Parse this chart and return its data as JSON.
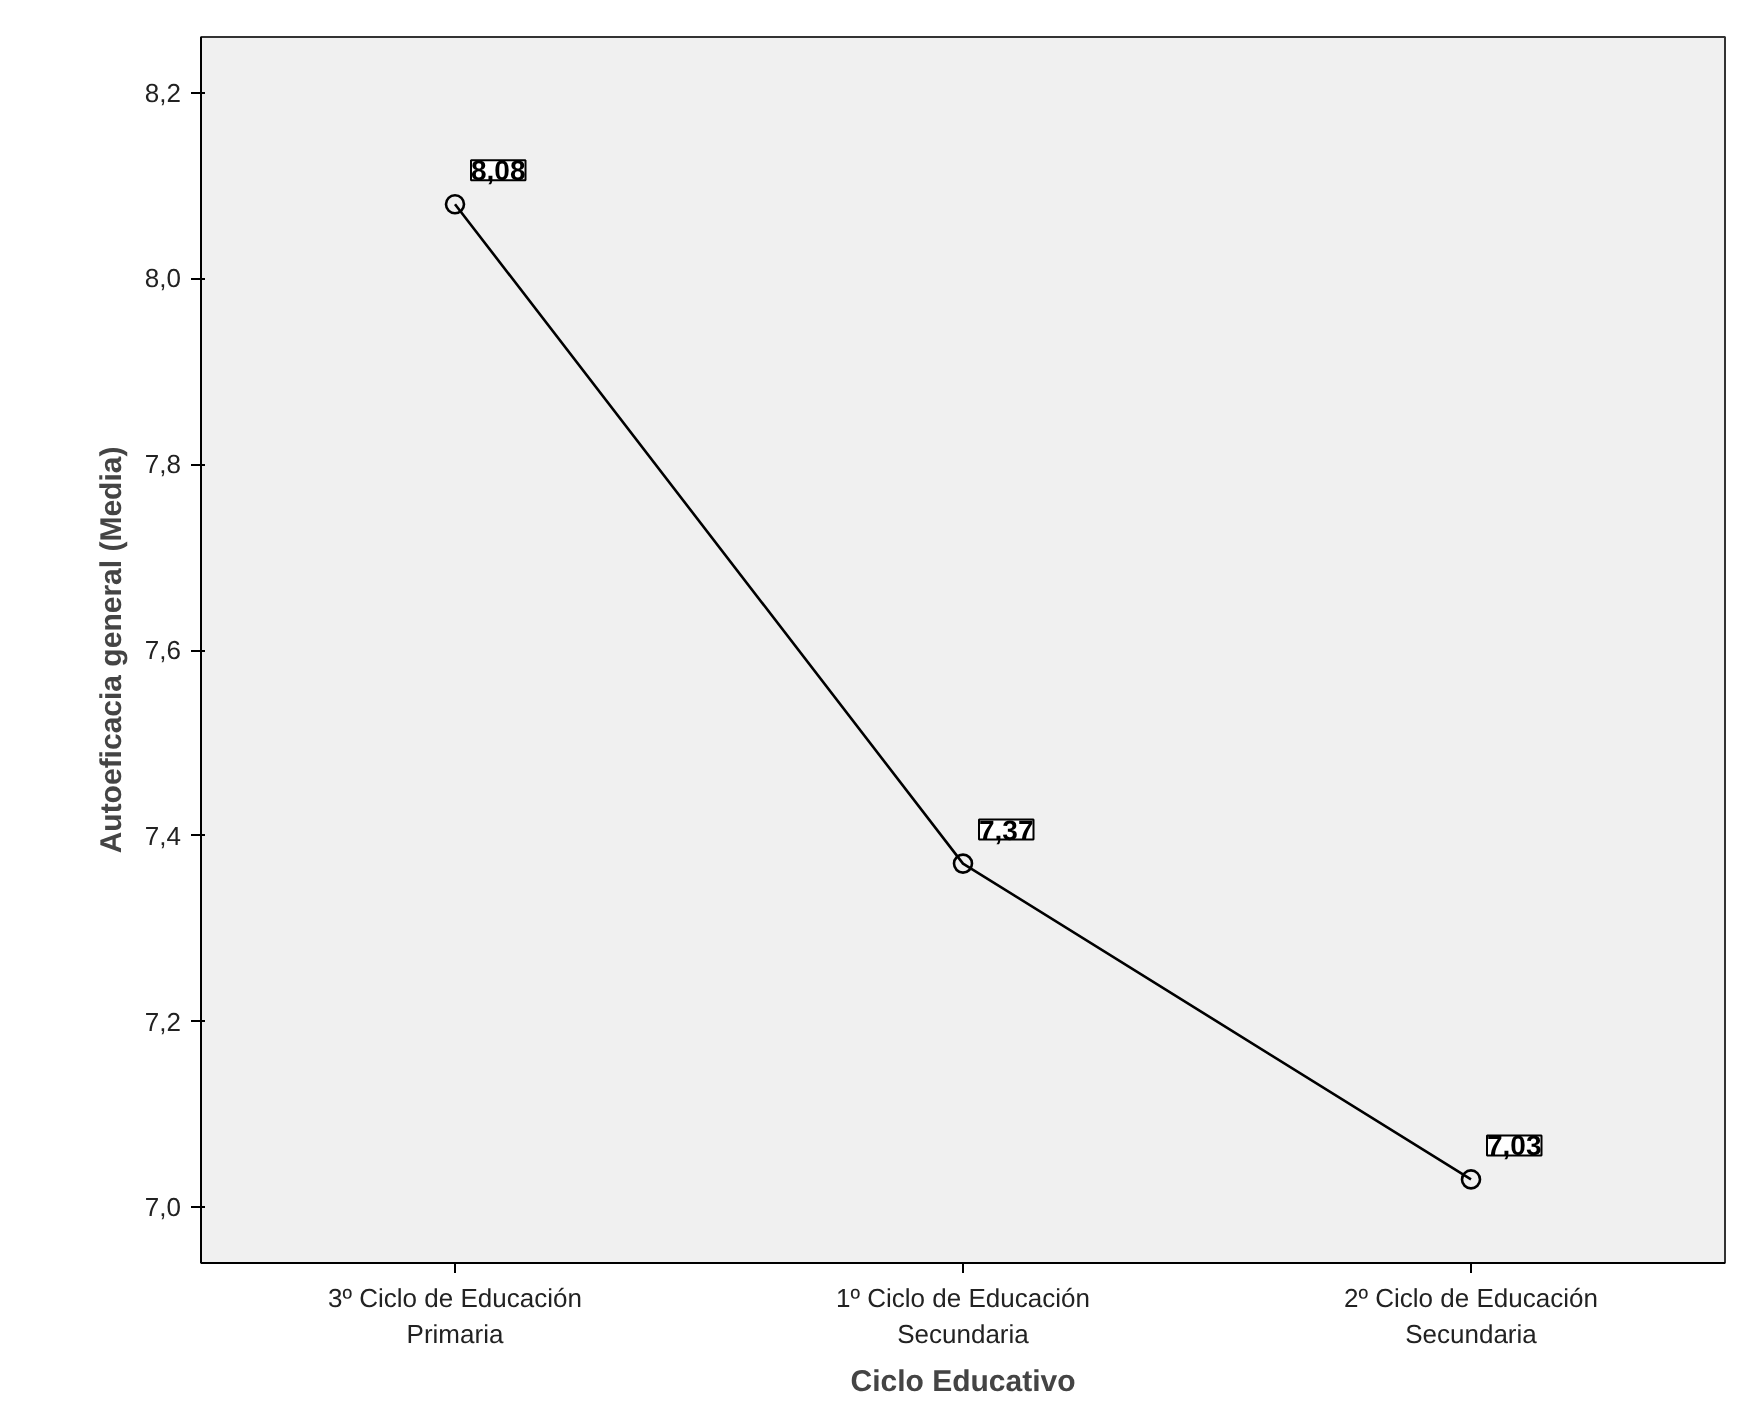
{
  "chart_data": {
    "type": "line",
    "xlabel": "Ciclo Educativo",
    "ylabel": "Autoeficacia general (Media)",
    "categories": [
      "3º Ciclo de Educación\nPrimaria",
      "1º Ciclo de Educación\nSecundaria",
      "2º Ciclo de Educación\nSecundaria"
    ],
    "series": [
      {
        "color": "#000000",
        "values": [
          8.08,
          7.37,
          7.03
        ]
      }
    ],
    "ylim": [
      6.94,
      8.26
    ],
    "yticks": [
      {
        "value": 7.0,
        "label": "7,0"
      },
      {
        "value": 7.2,
        "label": "7,2"
      },
      {
        "value": 7.4,
        "label": "7,4"
      },
      {
        "value": 7.6,
        "label": "7,6"
      },
      {
        "value": 7.8,
        "label": "7,8"
      },
      {
        "value": 8.0,
        "label": "8,0"
      },
      {
        "value": 8.2,
        "label": "8,2"
      }
    ],
    "value_labels": [
      "8,08",
      "7,37",
      "7,03"
    ],
    "marker": "circle",
    "line_style": "solid",
    "grid": false
  }
}
